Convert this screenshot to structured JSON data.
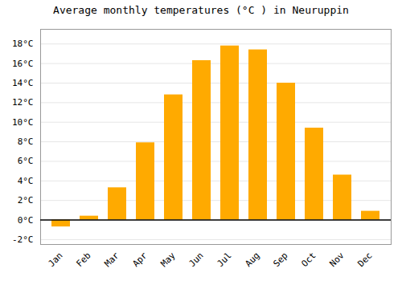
{
  "chart_data": {
    "type": "bar",
    "title": "Average monthly temperatures (°C ) in Neuruppin",
    "categories": [
      "Jan",
      "Feb",
      "Mar",
      "Apr",
      "May",
      "Jun",
      "Jul",
      "Aug",
      "Sep",
      "Oct",
      "Nov",
      "Dec"
    ],
    "values": [
      -0.7,
      0.4,
      3.3,
      7.9,
      12.8,
      16.3,
      17.8,
      17.4,
      14.0,
      9.4,
      4.6,
      0.9
    ],
    "color": "#FFAA00",
    "ylim": [
      -2.5,
      19.5
    ],
    "yticks": [
      {
        "value": -2,
        "label": "-2°C"
      },
      {
        "value": 0,
        "label": "0°C"
      },
      {
        "value": 2,
        "label": "2°C"
      },
      {
        "value": 4,
        "label": "4°C"
      },
      {
        "value": 6,
        "label": "6°C"
      },
      {
        "value": 8,
        "label": "8°C"
      },
      {
        "value": 10,
        "label": "10°C"
      },
      {
        "value": 12,
        "label": "12°C"
      },
      {
        "value": 14,
        "label": "14°C"
      },
      {
        "value": 16,
        "label": "16°C"
      },
      {
        "value": 18,
        "label": "18°C"
      }
    ],
    "grid": true
  }
}
